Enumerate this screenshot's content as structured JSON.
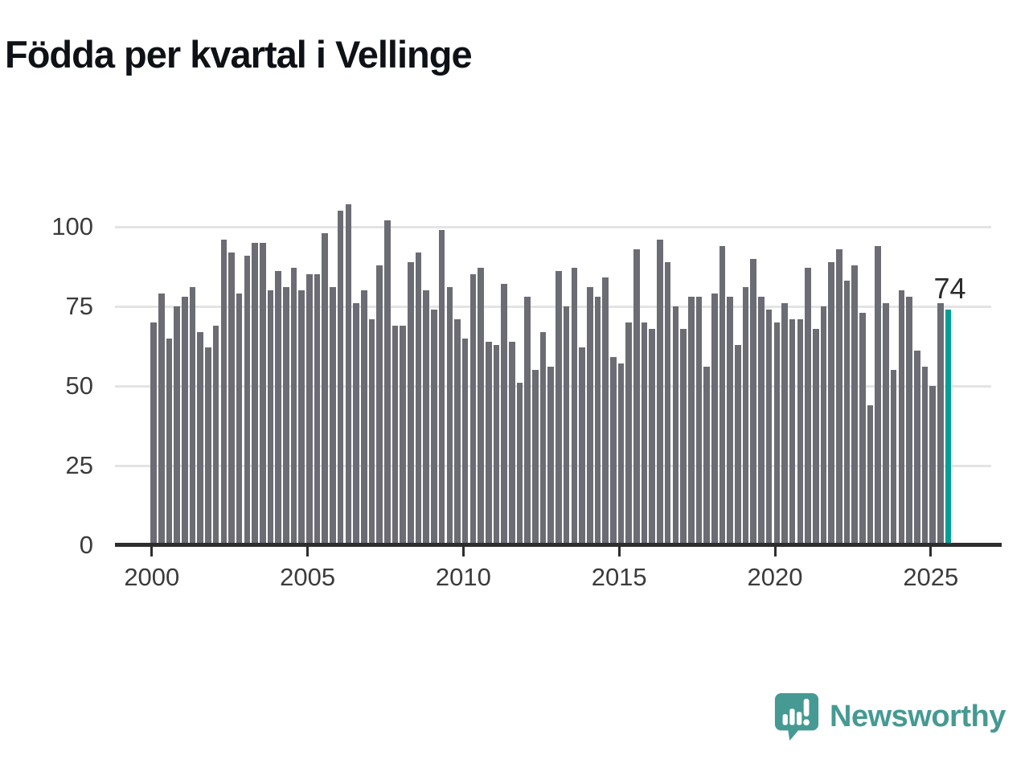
{
  "title": "Födda per kvartal i Vellinge",
  "annotation": {
    "last_value_label": "74"
  },
  "footer": {
    "brand": "Newsworthy"
  },
  "colors": {
    "bar": "#6c6c74",
    "highlight": "#00a098",
    "gridline": "#e4e4e4",
    "axis": "#2d2d2d",
    "tick_text": "#3b3b3b",
    "title_text": "#0e1116",
    "logo": "#459a93"
  },
  "chart_data": {
    "type": "bar",
    "title": "Födda per kvartal i Vellinge",
    "xlabel": "",
    "ylabel": "",
    "start_quarter": "2000Q1",
    "end_quarter": "2025Q3",
    "x_tick_labels": [
      "2000",
      "2005",
      "2010",
      "2015",
      "2020",
      "2025"
    ],
    "y_ticks": [
      0,
      25,
      50,
      75,
      100
    ],
    "ylim": [
      0,
      110
    ],
    "grid": "horizontal",
    "legend": "none",
    "highlight_last_bar": true,
    "last_value": 74,
    "values": [
      70,
      79,
      65,
      75,
      78,
      81,
      67,
      62,
      69,
      96,
      92,
      79,
      91,
      95,
      95,
      80,
      86,
      81,
      87,
      80,
      85,
      85,
      98,
      81,
      105,
      107,
      76,
      80,
      71,
      88,
      102,
      69,
      69,
      89,
      92,
      80,
      74,
      99,
      81,
      71,
      65,
      85,
      87,
      64,
      63,
      82,
      64,
      51,
      78,
      55,
      67,
      56,
      86,
      75,
      87,
      62,
      81,
      78,
      84,
      59,
      57,
      70,
      93,
      70,
      68,
      96,
      89,
      75,
      68,
      78,
      78,
      56,
      79,
      94,
      78,
      63,
      81,
      90,
      78,
      74,
      70,
      76,
      71,
      71,
      87,
      68,
      75,
      89,
      93,
      83,
      88,
      73,
      44,
      94,
      76,
      55,
      80,
      78,
      61,
      56,
      50,
      76,
      74
    ]
  }
}
